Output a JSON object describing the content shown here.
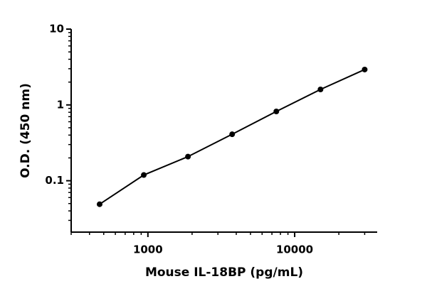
{
  "chart_data": {
    "type": "scatter",
    "x_label": "Mouse IL-18BP (pg/mL)",
    "y_label": "O.D. (450 nm)",
    "x": [
      468.75,
      937.5,
      1875,
      3750,
      7500,
      15000,
      30000
    ],
    "values": [
      0.049,
      0.119,
      0.208,
      0.41,
      0.82,
      1.6,
      2.93
    ],
    "color": "#000000",
    "xscale": "log",
    "yscale": "log",
    "xlim": [
      300,
      36500
    ],
    "ylim": [
      0.021,
      10
    ],
    "xticks": [
      1000,
      10000
    ],
    "yticks": [
      0.1,
      1,
      10
    ],
    "xminorticks": [
      300,
      400,
      500,
      600,
      700,
      800,
      900,
      2000,
      3000,
      4000,
      5000,
      6000,
      7000,
      8000,
      9000,
      20000,
      30000
    ],
    "yminorticks": [
      0.03,
      0.04,
      0.05,
      0.06,
      0.07,
      0.08,
      0.09,
      0.2,
      0.3,
      0.4,
      0.5,
      0.6,
      0.7,
      0.8,
      0.9,
      2,
      3,
      4,
      5,
      6,
      7,
      8,
      9
    ],
    "fit_line": true
  }
}
